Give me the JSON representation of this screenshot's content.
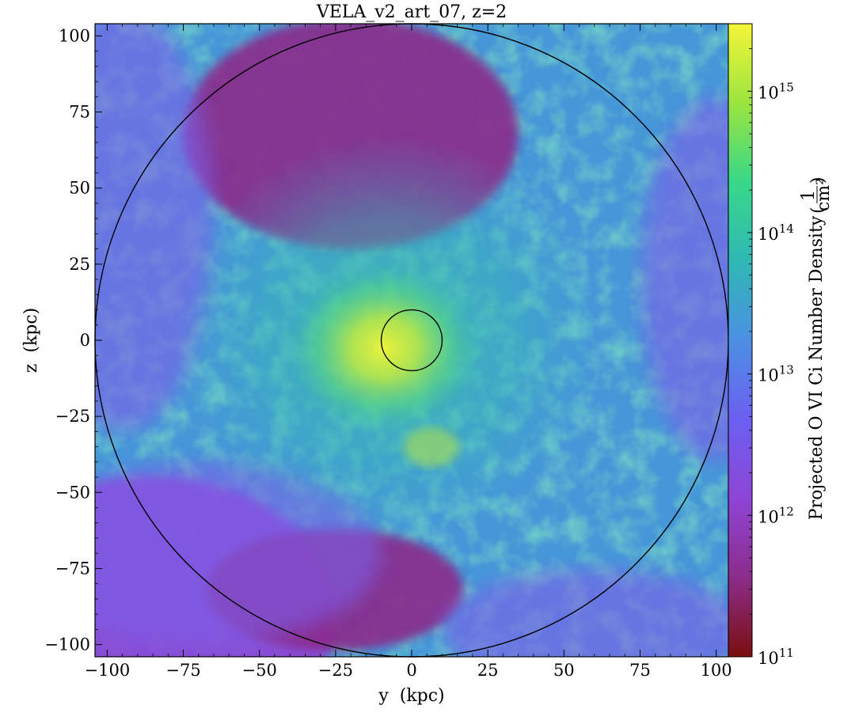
{
  "chart_data": {
    "type": "heatmap",
    "title": "VELA_v2_art_07, z=2",
    "xlabel": "y  (kpc)",
    "ylabel": "z  (kpc)",
    "xlim": [
      -104,
      104
    ],
    "ylim": [
      -104,
      104
    ],
    "xticks": [
      -100,
      -75,
      -50,
      -25,
      0,
      25,
      50,
      75,
      100
    ],
    "yticks": [
      -100,
      -75,
      -50,
      -25,
      0,
      25,
      50,
      75,
      100
    ],
    "xtick_labels": [
      "−100",
      "−75",
      "−50",
      "−25",
      "0",
      "25",
      "50",
      "75",
      "100"
    ],
    "ytick_labels": [
      "−100",
      "−75",
      "−50",
      "−25",
      "0",
      "25",
      "50",
      "75",
      "100"
    ],
    "colorbar": {
      "label": "Projected O VI Ci Number Density",
      "unit_numerator": "1",
      "unit_denominator": "cm²",
      "scale": "log",
      "range": [
        100000000000.0,
        3000000000000000.0
      ],
      "tick_values": [
        100000000000.0,
        1000000000000.0,
        10000000000000.0,
        100000000000000.0,
        1000000000000000.0
      ],
      "tick_exponents": [
        "11",
        "12",
        "13",
        "14",
        "15"
      ],
      "colormap": [
        "#7a0f0f",
        "#8b2c8a",
        "#8e45d6",
        "#6b5ff0",
        "#4c8fe3",
        "#2fb8b4",
        "#38d88a",
        "#9be53f",
        "#f5f538"
      ]
    },
    "circles": [
      {
        "center": [
          0,
          0
        ],
        "radius": 104,
        "label": "outer"
      },
      {
        "center": [
          0,
          0
        ],
        "radius": 10,
        "label": "inner"
      }
    ],
    "features": [
      {
        "kind": "low-density region",
        "center": [
          -20,
          68
        ],
        "approx_log_value": 11.3
      },
      {
        "kind": "low-density region",
        "center": [
          -85,
          -90
        ],
        "approx_log_value": 12.3
      },
      {
        "kind": "low-density region",
        "center": [
          -25,
          -82
        ],
        "approx_log_value": 11.8
      },
      {
        "kind": "high-density core",
        "center": [
          -5,
          0
        ],
        "approx_log_value": 15.2
      }
    ]
  }
}
